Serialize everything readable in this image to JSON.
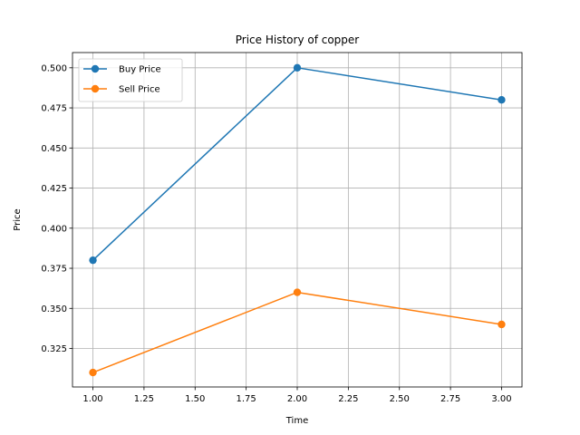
{
  "chart_data": {
    "type": "line",
    "title": "Price History of copper",
    "xlabel": "Time",
    "ylabel": "Price",
    "x": [
      1.0,
      2.0,
      3.0
    ],
    "series": [
      {
        "name": "Buy Price",
        "values": [
          0.38,
          0.5,
          0.48
        ],
        "color": "#1f77b4"
      },
      {
        "name": "Sell Price",
        "values": [
          0.31,
          0.36,
          0.34
        ],
        "color": "#ff7f0e"
      }
    ],
    "xlim": [
      0.9,
      3.1
    ],
    "ylim": [
      0.301,
      0.5095
    ],
    "xticks": [
      1.0,
      1.25,
      1.5,
      1.75,
      2.0,
      2.25,
      2.5,
      2.75,
      3.0
    ],
    "xtick_labels": [
      "1.00",
      "1.25",
      "1.50",
      "1.75",
      "2.00",
      "2.25",
      "2.50",
      "2.75",
      "3.00"
    ],
    "yticks": [
      0.325,
      0.35,
      0.375,
      0.4,
      0.425,
      0.45,
      0.475,
      0.5
    ],
    "ytick_labels": [
      "0.325",
      "0.350",
      "0.375",
      "0.400",
      "0.425",
      "0.450",
      "0.475",
      "0.500"
    ],
    "grid": true,
    "legend_position": "top-left"
  }
}
